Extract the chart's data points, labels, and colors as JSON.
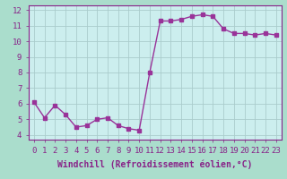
{
  "x": [
    0,
    1,
    2,
    3,
    4,
    5,
    6,
    7,
    8,
    9,
    10,
    11,
    12,
    13,
    14,
    15,
    16,
    17,
    18,
    19,
    20,
    21,
    22,
    23
  ],
  "y": [
    6.1,
    5.1,
    5.9,
    5.3,
    4.5,
    4.6,
    5.0,
    5.1,
    4.6,
    4.4,
    4.3,
    8.0,
    11.3,
    11.3,
    11.4,
    11.6,
    11.7,
    11.6,
    10.8,
    10.5,
    10.5,
    10.4,
    10.5,
    10.4
  ],
  "xlabel": "Windchill (Refroidissement éolien,°C)",
  "line_color": "#993399",
  "fig_bg_color": "#aaddcc",
  "plot_bg_color": "#cceeee",
  "grid_color": "#aacccc",
  "label_bg_color": "#7722aa",
  "tick_label_color": "#882288",
  "axis_label_color": "#882288",
  "ylim_min": 4,
  "ylim_max": 12,
  "xlim_min": 0,
  "xlim_max": 23,
  "yticks": [
    4,
    5,
    6,
    7,
    8,
    9,
    10,
    11,
    12
  ],
  "xticks": [
    0,
    1,
    2,
    3,
    4,
    5,
    6,
    7,
    8,
    9,
    10,
    11,
    12,
    13,
    14,
    15,
    16,
    17,
    18,
    19,
    20,
    21,
    22,
    23
  ],
  "marker_size": 2.5,
  "line_width": 1.0,
  "tick_fontsize": 6.5,
  "xlabel_fontsize": 7.0
}
